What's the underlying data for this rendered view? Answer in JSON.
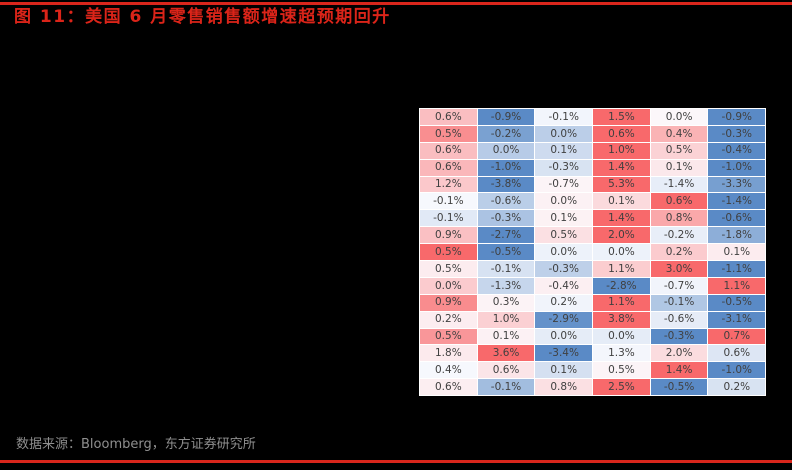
{
  "page": {
    "background_color": "#000000",
    "accent_color": "#D9261C"
  },
  "header": {
    "title": "图 11：美国 6 月零售销售额增速超预期回升",
    "title_color": "#DB2419"
  },
  "footer": {
    "source": "数据来源：Bloomberg，东方证券研究所",
    "text_color": "#8F8F8F"
  },
  "chart_data": {
    "type": "heatmap",
    "title": "图 11：美国 6 月零售销售额增速超预期回升",
    "unit": "%",
    "columns": 6,
    "rows": [
      [
        0.6,
        -0.9,
        -0.1,
        1.5,
        0.0,
        -0.9
      ],
      [
        0.5,
        -0.2,
        0.0,
        0.6,
        0.4,
        -0.3
      ],
      [
        0.6,
        0.0,
        0.1,
        1.0,
        0.5,
        -0.4
      ],
      [
        0.6,
        -1.0,
        -0.3,
        1.4,
        0.1,
        -1.0
      ],
      [
        1.2,
        -3.8,
        -0.7,
        5.3,
        -1.4,
        -3.3
      ],
      [
        -0.1,
        -0.6,
        0.0,
        0.1,
        0.6,
        -1.4
      ],
      [
        -0.1,
        -0.3,
        0.1,
        1.4,
        0.8,
        -0.6
      ],
      [
        0.9,
        -2.7,
        0.5,
        2.0,
        -0.2,
        -1.8
      ],
      [
        0.5,
        -0.5,
        0.0,
        0.0,
        0.2,
        0.1
      ],
      [
        0.5,
        -0.1,
        -0.3,
        1.1,
        3.0,
        -1.1
      ],
      [
        0.0,
        -1.3,
        -0.4,
        -2.8,
        -0.7,
        1.1
      ],
      [
        0.9,
        0.3,
        0.2,
        1.1,
        -0.1,
        -0.5
      ],
      [
        0.2,
        1.0,
        -2.9,
        3.8,
        -0.6,
        -3.1
      ],
      [
        0.5,
        0.1,
        0.0,
        0.0,
        -0.3,
        0.7
      ],
      [
        1.8,
        3.6,
        -3.4,
        1.3,
        2.0,
        0.6
      ],
      [
        0.4,
        0.6,
        0.1,
        0.5,
        1.4,
        -1.0
      ],
      [
        0.6,
        -0.1,
        0.8,
        2.5,
        -0.5,
        0.2
      ]
    ],
    "color_scale": {
      "mode": "per-row, min -> 50th percentile -> max",
      "min_color": "#5A8AC6",
      "mid_color": "#FCFCFF",
      "max_color": "#F8696B"
    },
    "cell_text_color": "#404040",
    "grid_line_color": "#FFFFFF"
  }
}
